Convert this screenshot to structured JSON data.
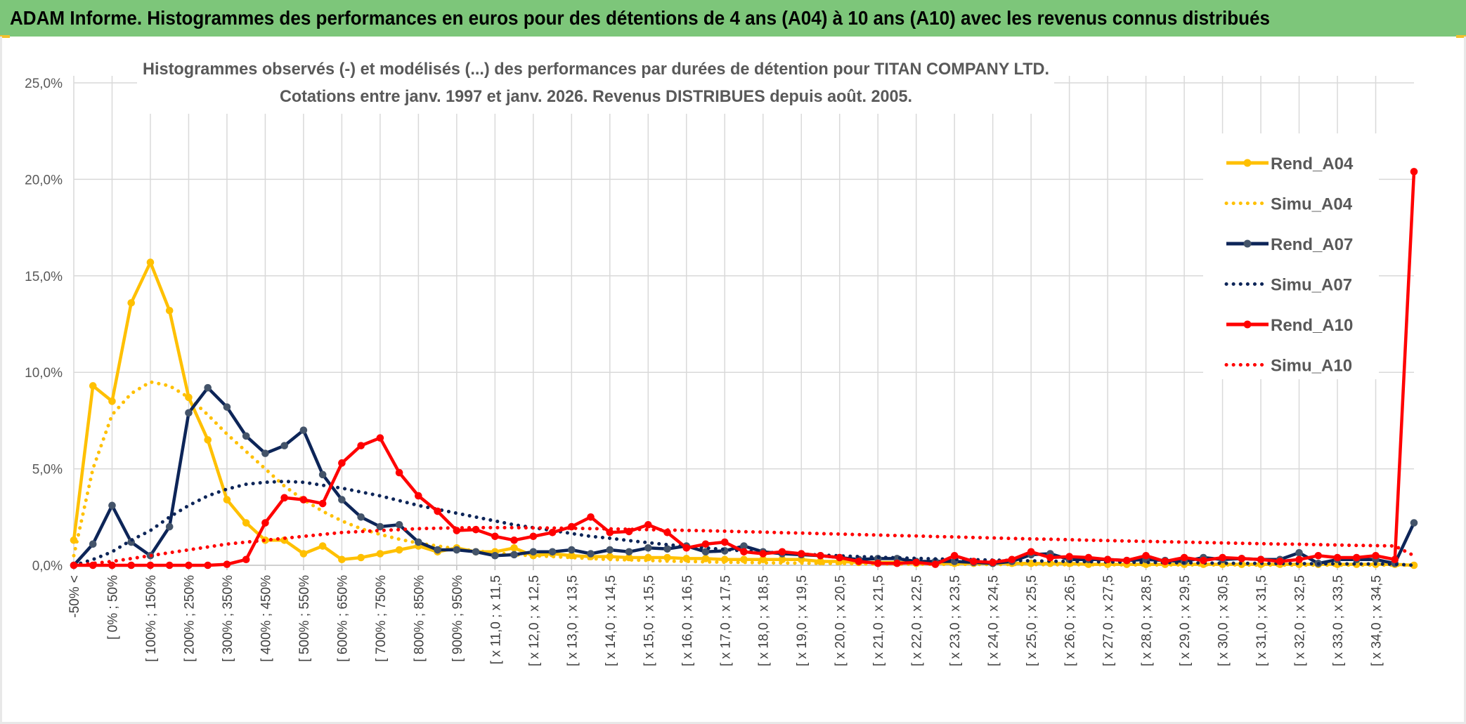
{
  "header": {
    "title": "ADAM Informe. Histogrammes des performances en euros pour des détentions de 4 ans (A04) à 10 ans (A10) avec les revenus connus distribués"
  },
  "colors": {
    "banner": "#7dc67a",
    "a04": "#ffc000",
    "a07": "#0d2558",
    "a07_marker": "#44546a",
    "a10": "#ff0000",
    "grid": "#d9d9d9"
  },
  "chart_data": {
    "type": "line",
    "title_line1": "Histogrammes observés (-) et modélisés (...) des performances par durées de détention pour TITAN COMPANY LTD.",
    "title_line2": "Cotations entre janv. 1997 et janv. 2026. Revenus DISTRIBUES depuis août. 2005.",
    "xlabel": "",
    "ylabel": "",
    "ylim": [
      0,
      25
    ],
    "y_ticks": [
      "0,0%",
      "5,0%",
      "10,0%",
      "15,0%",
      "20,0%",
      "25,0%"
    ],
    "grid": true,
    "legend_position": "right",
    "x_tick_labels": [
      "-50% <",
      "[ 0% ; 50%",
      "[ 100% ; 150%",
      "[ 200% ; 250%",
      "[ 300% ; 350%",
      "[ 400% ; 450%",
      "[ 500% ; 550%",
      "[ 600% ; 650%",
      "[ 700% ; 750%",
      "[ 800% ; 850%",
      "[ 900% ; 950%",
      "[ x 11,0 ; x 11,5",
      "[ x 12,0 ; x 12,5",
      "[ x 13,0 ; x 13,5",
      "[ x 14,0 ; x 14,5",
      "[ x 15,0 ; x 15,5",
      "[ x 16,0 ; x 16,5",
      "[ x 17,0 ; x 17,5",
      "[ x 18,0 ; x 18,5",
      "[ x 19,0 ; x 19,5",
      "[ x 20,0 ; x 20,5",
      "[ x 21,0 ; x 21,5",
      "[ x 22,0 ; x 22,5",
      "[ x 23,0 ; x 23,5",
      "[ x 24,0 ; x 24,5",
      "[ x 25,0 ; x 25,5",
      "[ x 26,0 ; x 26,5",
      "[ x 27,0 ; x 27,5",
      "[ x 28,0 ; x 28,5",
      "[ x 29,0 ; x 29,5",
      "[ x 30,0 ; x 30,5",
      "[ x 31,0 ; x 31,5",
      "[ x 32,0 ; x 32,5",
      "[ x 33,0 ; x 33,5",
      "[ x 34,0 ; x 34,5"
    ],
    "series": [
      {
        "name": "Rend_A04",
        "style": "solid",
        "color": "#ffc000",
        "values": [
          1.3,
          9.3,
          8.5,
          13.6,
          15.7,
          13.2,
          8.7,
          6.5,
          3.4,
          2.2,
          1.3,
          1.3,
          0.6,
          1.0,
          0.3,
          0.4,
          0.6,
          0.8,
          1.0,
          0.7,
          0.9,
          0.7,
          0.7,
          0.9,
          0.5,
          0.6,
          0.5,
          0.45,
          0.45,
          0.4,
          0.4,
          0.4,
          0.35,
          0.35,
          0.3,
          0.3,
          0.3,
          0.3,
          0.3,
          0.2,
          0.2,
          0.15,
          0.15,
          0.15,
          0.1,
          0.1,
          0.1,
          0.1,
          0.1,
          0.1,
          0.1,
          0.1,
          0.1,
          0.05,
          0.05,
          0.05,
          0.05,
          0.05,
          0.05,
          0.05,
          0.05,
          0.05,
          0.05,
          0.05,
          0.05,
          0.05,
          0.05,
          0.05,
          0.05,
          0.05,
          0.0
        ]
      },
      {
        "name": "Simu_A04",
        "style": "dotted",
        "color": "#ffc000",
        "values": [
          0.5,
          5.0,
          7.8,
          8.9,
          9.5,
          9.3,
          8.7,
          7.8,
          6.8,
          5.9,
          5.0,
          4.1,
          3.4,
          2.8,
          2.3,
          1.9,
          1.6,
          1.35,
          1.15,
          1.0,
          0.85,
          0.75,
          0.65,
          0.55,
          0.5,
          0.45,
          0.4,
          0.35,
          0.3,
          0.28,
          0.25,
          0.22,
          0.2,
          0.18,
          0.16,
          0.15,
          0.13,
          0.12,
          0.11,
          0.1,
          0.09,
          0.08,
          0.07,
          0.07,
          0.06,
          0.05,
          0.05,
          0.05,
          0.04,
          0.04,
          0.04,
          0.03,
          0.03,
          0.03,
          0.03,
          0.02,
          0.02,
          0.02,
          0.02,
          0.02,
          0.02,
          0.02,
          0.01,
          0.01,
          0.01,
          0.01,
          0.01,
          0.01,
          0.01,
          0.01,
          0.0
        ]
      },
      {
        "name": "Rend_A07",
        "style": "solid",
        "color": "#0d2558",
        "values": [
          0.0,
          1.1,
          3.1,
          1.2,
          0.5,
          2.0,
          7.9,
          9.2,
          8.2,
          6.7,
          5.8,
          6.2,
          7.0,
          4.7,
          3.4,
          2.5,
          2.0,
          2.1,
          1.2,
          0.8,
          0.8,
          0.7,
          0.5,
          0.55,
          0.7,
          0.7,
          0.8,
          0.6,
          0.8,
          0.7,
          0.9,
          0.85,
          1.0,
          0.7,
          0.75,
          1.0,
          0.7,
          0.6,
          0.55,
          0.5,
          0.4,
          0.3,
          0.35,
          0.35,
          0.2,
          0.2,
          0.2,
          0.15,
          0.1,
          0.2,
          0.55,
          0.6,
          0.3,
          0.3,
          0.3,
          0.25,
          0.3,
          0.25,
          0.2,
          0.4,
          0.3,
          0.35,
          0.3,
          0.3,
          0.65,
          0.1,
          0.3,
          0.3,
          0.3,
          0.1,
          2.2
        ]
      },
      {
        "name": "Simu_A07",
        "style": "dotted",
        "color": "#0d2558",
        "values": [
          0.0,
          0.3,
          0.7,
          1.3,
          1.8,
          2.5,
          3.1,
          3.6,
          3.95,
          4.2,
          4.3,
          4.35,
          4.3,
          4.15,
          4.0,
          3.8,
          3.6,
          3.35,
          3.1,
          2.9,
          2.7,
          2.5,
          2.3,
          2.1,
          1.95,
          1.8,
          1.65,
          1.5,
          1.4,
          1.28,
          1.17,
          1.07,
          0.98,
          0.9,
          0.82,
          0.75,
          0.69,
          0.63,
          0.58,
          0.53,
          0.49,
          0.45,
          0.42,
          0.39,
          0.36,
          0.33,
          0.31,
          0.29,
          0.27,
          0.25,
          0.23,
          0.21,
          0.2,
          0.19,
          0.17,
          0.16,
          0.15,
          0.14,
          0.13,
          0.12,
          0.11,
          0.1,
          0.1,
          0.09,
          0.09,
          0.08,
          0.08,
          0.07,
          0.07,
          0.06,
          0.0
        ]
      },
      {
        "name": "Rend_A10",
        "style": "solid",
        "color": "#ff0000",
        "values": [
          0.0,
          0.0,
          0.0,
          0.0,
          0.0,
          0.0,
          0.0,
          0.0,
          0.05,
          0.3,
          2.2,
          3.5,
          3.4,
          3.2,
          5.3,
          6.2,
          6.6,
          4.8,
          3.6,
          2.8,
          1.8,
          1.85,
          1.5,
          1.3,
          1.5,
          1.7,
          2.0,
          2.5,
          1.7,
          1.75,
          2.1,
          1.7,
          0.9,
          1.1,
          1.2,
          0.7,
          0.6,
          0.7,
          0.6,
          0.5,
          0.4,
          0.2,
          0.1,
          0.1,
          0.15,
          0.05,
          0.5,
          0.2,
          0.15,
          0.3,
          0.7,
          0.4,
          0.45,
          0.4,
          0.3,
          0.25,
          0.5,
          0.2,
          0.4,
          0.25,
          0.4,
          0.35,
          0.3,
          0.2,
          0.3,
          0.5,
          0.4,
          0.4,
          0.5,
          0.3,
          20.4
        ]
      },
      {
        "name": "Simu_A10",
        "style": "dotted",
        "color": "#ff0000",
        "values": [
          0.0,
          0.1,
          0.2,
          0.35,
          0.5,
          0.65,
          0.8,
          0.95,
          1.1,
          1.2,
          1.3,
          1.4,
          1.5,
          1.6,
          1.7,
          1.75,
          1.8,
          1.85,
          1.9,
          1.92,
          1.94,
          1.95,
          1.95,
          1.95,
          1.94,
          1.93,
          1.92,
          1.9,
          1.89,
          1.87,
          1.85,
          1.83,
          1.81,
          1.79,
          1.77,
          1.74,
          1.72,
          1.69,
          1.67,
          1.64,
          1.62,
          1.59,
          1.57,
          1.54,
          1.52,
          1.49,
          1.47,
          1.44,
          1.42,
          1.39,
          1.37,
          1.35,
          1.33,
          1.3,
          1.28,
          1.26,
          1.24,
          1.22,
          1.2,
          1.18,
          1.16,
          1.14,
          1.12,
          1.1,
          1.09,
          1.07,
          1.05,
          1.03,
          1.02,
          1.0,
          0.5
        ]
      }
    ]
  }
}
